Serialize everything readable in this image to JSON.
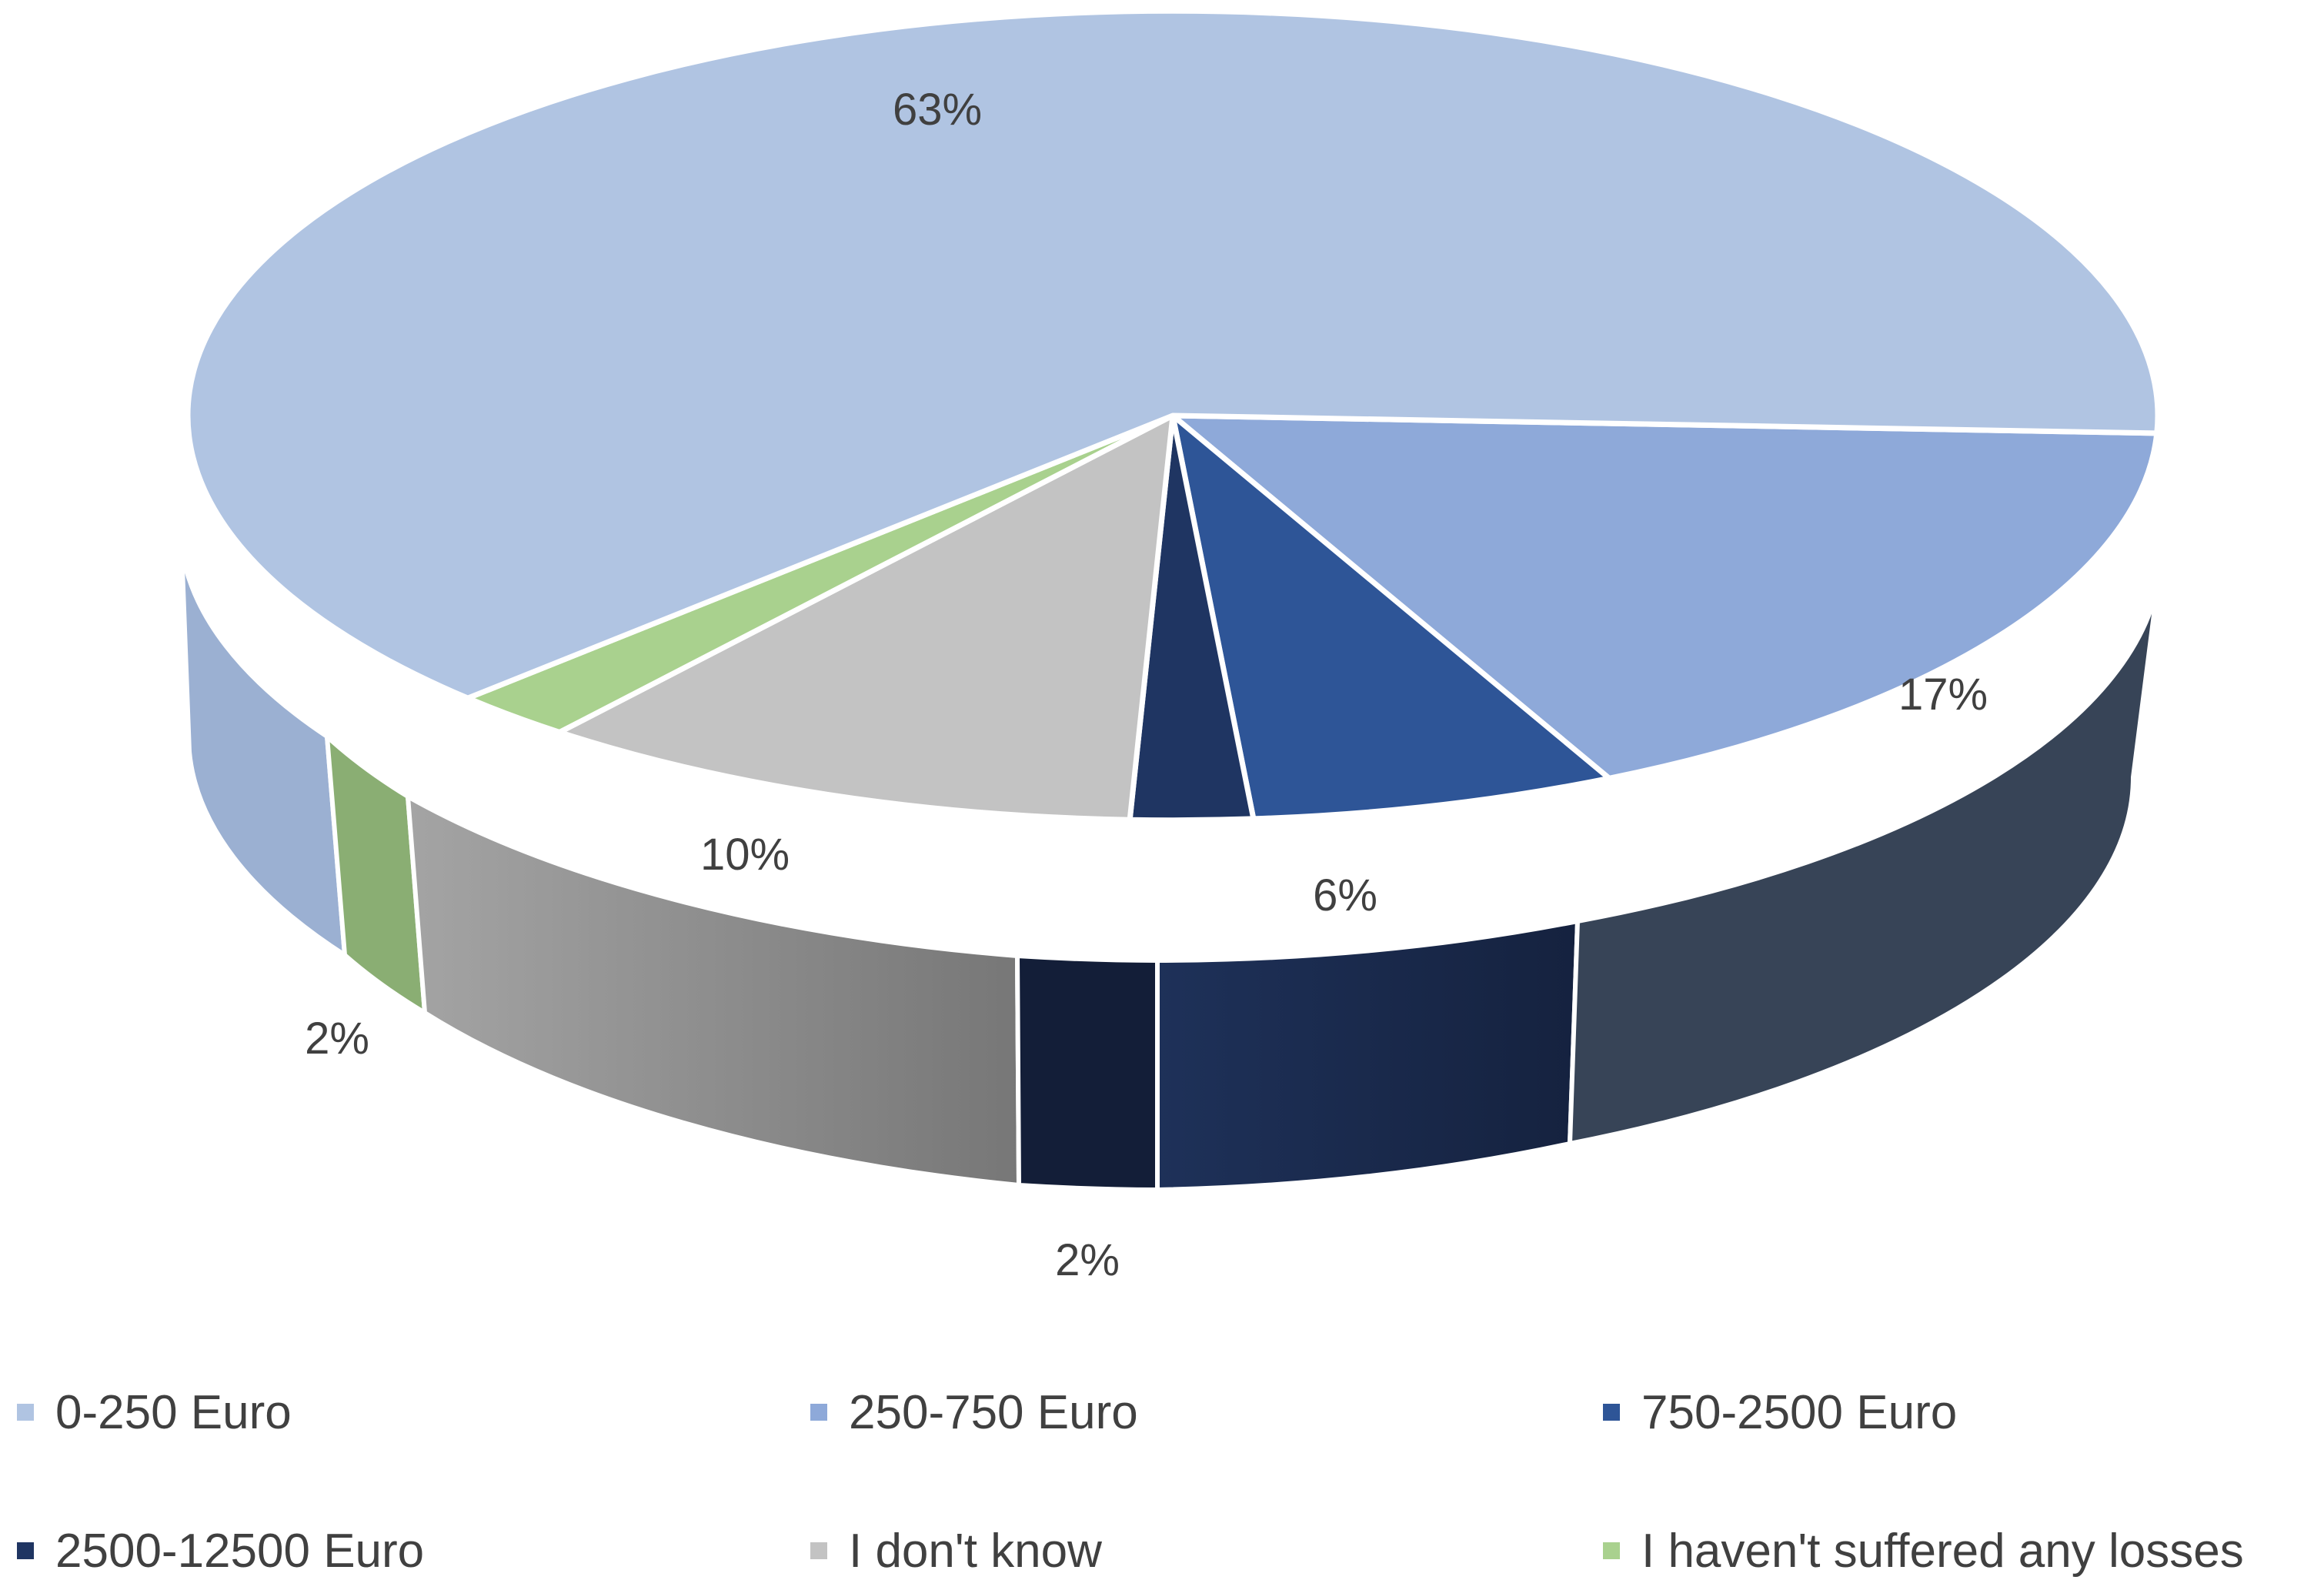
{
  "chart_data": {
    "type": "pie",
    "style": "3d",
    "title": "",
    "slices": [
      {
        "label": "0-250 Euro",
        "value": 63,
        "value_label": "63%",
        "color": "#B0C4E2"
      },
      {
        "label": "250-750 Euro",
        "value": 17,
        "value_label": "17%",
        "color": "#8EA9D9"
      },
      {
        "label": "750-2500 Euro",
        "value": 6,
        "value_label": "6%",
        "color": "#2E5597"
      },
      {
        "label": "2500-12500 Euro",
        "value": 2,
        "value_label": "2%",
        "color": "#1F3562"
      },
      {
        "label": "I don't know",
        "value": 10,
        "value_label": "10%",
        "color": "#C3C3C3"
      },
      {
        "label": "I haven't suffered any losses",
        "value": 2,
        "value_label": "2%",
        "color": "#A9D18E"
      }
    ],
    "legend_position": "bottom"
  }
}
